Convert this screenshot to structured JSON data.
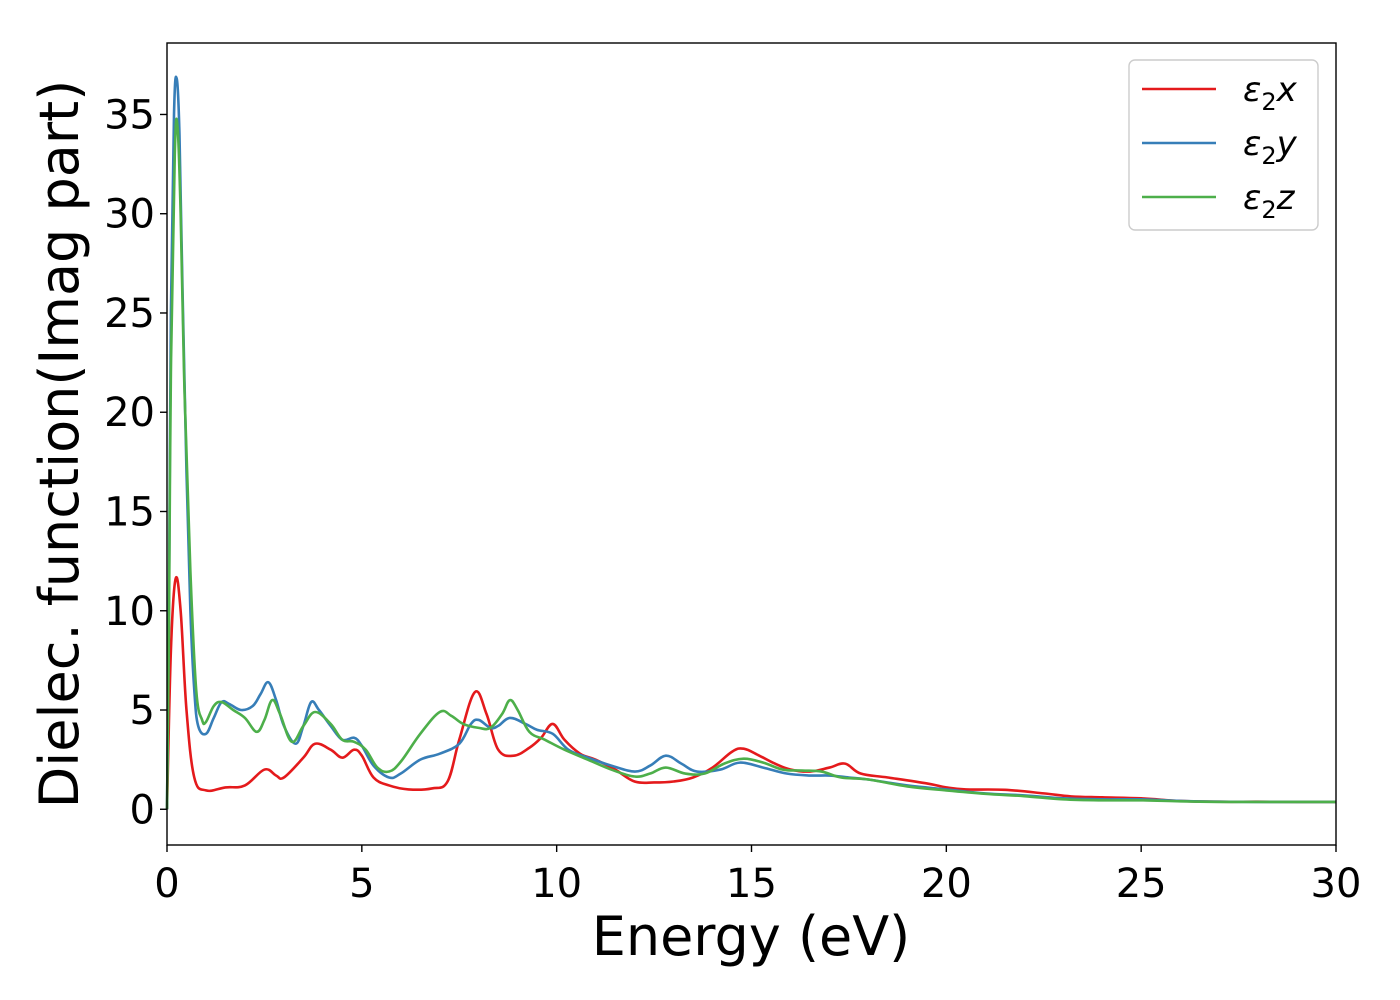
{
  "chart_data": {
    "type": "line",
    "xlabel": "Energy (eV)",
    "ylabel": "Dielec. function(Imag part)",
    "xlim": [
      0,
      30
    ],
    "ylim": [
      -1.8,
      38.6
    ],
    "xticks": [
      0,
      5,
      10,
      15,
      20,
      25,
      30
    ],
    "yticks": [
      0,
      5,
      10,
      15,
      20,
      25,
      30,
      35
    ],
    "grid": false,
    "legend_position": "top-right",
    "series": [
      {
        "name": "ε₂x",
        "legend_main": "ε",
        "legend_sub": "2",
        "legend_tail": "x",
        "color": "#e41a1c",
        "points": [
          [
            0,
            0
          ],
          [
            0.1,
            8
          ],
          [
            0.22,
            11.6
          ],
          [
            0.35,
            10
          ],
          [
            0.5,
            5
          ],
          [
            0.7,
            1.6
          ],
          [
            1,
            0.95
          ],
          [
            1.5,
            1.1
          ],
          [
            2,
            1.2
          ],
          [
            2.5,
            2.0
          ],
          [
            2.8,
            1.7
          ],
          [
            3.0,
            1.6
          ],
          [
            3.5,
            2.6
          ],
          [
            3.8,
            3.3
          ],
          [
            4.2,
            3.0
          ],
          [
            4.5,
            2.6
          ],
          [
            4.8,
            3.0
          ],
          [
            5.0,
            2.7
          ],
          [
            5.3,
            1.6
          ],
          [
            5.7,
            1.2
          ],
          [
            6.2,
            1.0
          ],
          [
            6.8,
            1.05
          ],
          [
            7.2,
            1.4
          ],
          [
            7.5,
            3.5
          ],
          [
            7.9,
            5.9
          ],
          [
            8.2,
            4.8
          ],
          [
            8.5,
            3.0
          ],
          [
            8.9,
            2.7
          ],
          [
            9.3,
            3.1
          ],
          [
            9.6,
            3.6
          ],
          [
            9.9,
            4.3
          ],
          [
            10.2,
            3.5
          ],
          [
            10.6,
            2.8
          ],
          [
            11.0,
            2.5
          ],
          [
            11.5,
            2.0
          ],
          [
            12.0,
            1.4
          ],
          [
            12.5,
            1.35
          ],
          [
            13.0,
            1.4
          ],
          [
            13.5,
            1.6
          ],
          [
            14.0,
            2.1
          ],
          [
            14.5,
            2.9
          ],
          [
            14.8,
            3.05
          ],
          [
            15.2,
            2.7
          ],
          [
            15.6,
            2.3
          ],
          [
            16.0,
            2.0
          ],
          [
            16.5,
            1.9
          ],
          [
            17.0,
            2.1
          ],
          [
            17.4,
            2.3
          ],
          [
            17.8,
            1.8
          ],
          [
            18.5,
            1.6
          ],
          [
            19.5,
            1.3
          ],
          [
            20,
            1.1
          ],
          [
            20.5,
            1.0
          ],
          [
            21.5,
            0.98
          ],
          [
            22.5,
            0.8
          ],
          [
            23.2,
            0.65
          ],
          [
            24,
            0.6
          ],
          [
            25,
            0.55
          ],
          [
            26,
            0.42
          ],
          [
            27,
            0.38
          ],
          [
            28,
            0.38
          ],
          [
            29,
            0.37
          ],
          [
            30,
            0.37
          ]
        ]
      },
      {
        "name": "ε₂y",
        "legend_main": "ε",
        "legend_sub": "2",
        "legend_tail": "y",
        "color": "#377eb8",
        "points": [
          [
            0,
            0
          ],
          [
            0.05,
            10
          ],
          [
            0.1,
            25
          ],
          [
            0.18,
            35
          ],
          [
            0.25,
            36.8
          ],
          [
            0.32,
            34
          ],
          [
            0.4,
            26
          ],
          [
            0.5,
            17
          ],
          [
            0.6,
            10
          ],
          [
            0.7,
            6
          ],
          [
            0.8,
            4.2
          ],
          [
            1.0,
            3.8
          ],
          [
            1.2,
            4.6
          ],
          [
            1.4,
            5.4
          ],
          [
            1.6,
            5.3
          ],
          [
            1.9,
            5.0
          ],
          [
            2.2,
            5.2
          ],
          [
            2.4,
            5.8
          ],
          [
            2.6,
            6.4
          ],
          [
            2.8,
            5.5
          ],
          [
            3.0,
            4.2
          ],
          [
            3.3,
            3.3
          ],
          [
            3.5,
            4.2
          ],
          [
            3.7,
            5.4
          ],
          [
            3.9,
            5.0
          ],
          [
            4.2,
            4.2
          ],
          [
            4.5,
            3.5
          ],
          [
            4.8,
            3.6
          ],
          [
            5.0,
            3.2
          ],
          [
            5.3,
            2.2
          ],
          [
            5.7,
            1.6
          ],
          [
            6.0,
            1.8
          ],
          [
            6.5,
            2.5
          ],
          [
            7.0,
            2.8
          ],
          [
            7.5,
            3.3
          ],
          [
            7.8,
            4.3
          ],
          [
            8.0,
            4.5
          ],
          [
            8.3,
            4.1
          ],
          [
            8.5,
            4.2
          ],
          [
            8.8,
            4.6
          ],
          [
            9.2,
            4.3
          ],
          [
            9.5,
            4.0
          ],
          [
            9.9,
            3.8
          ],
          [
            10.3,
            3.0
          ],
          [
            10.8,
            2.6
          ],
          [
            11.4,
            2.2
          ],
          [
            12.0,
            1.9
          ],
          [
            12.4,
            2.2
          ],
          [
            12.8,
            2.7
          ],
          [
            13.2,
            2.3
          ],
          [
            13.6,
            1.9
          ],
          [
            14.2,
            2.0
          ],
          [
            14.7,
            2.35
          ],
          [
            15.3,
            2.1
          ],
          [
            15.9,
            1.8
          ],
          [
            16.5,
            1.7
          ],
          [
            17.0,
            1.7
          ],
          [
            17.5,
            1.6
          ],
          [
            18,
            1.5
          ],
          [
            19,
            1.2
          ],
          [
            20,
            1.0
          ],
          [
            21,
            0.8
          ],
          [
            22,
            0.7
          ],
          [
            23,
            0.55
          ],
          [
            24,
            0.5
          ],
          [
            25,
            0.5
          ],
          [
            26,
            0.42
          ],
          [
            27,
            0.38
          ],
          [
            28,
            0.37
          ],
          [
            29,
            0.37
          ],
          [
            30,
            0.37
          ]
        ]
      },
      {
        "name": "ε₂z",
        "legend_main": "ε",
        "legend_sub": "2",
        "legend_tail": "z",
        "color": "#4daf4a",
        "points": [
          [
            0,
            0
          ],
          [
            0.05,
            9
          ],
          [
            0.1,
            22
          ],
          [
            0.2,
            33
          ],
          [
            0.27,
            34.4
          ],
          [
            0.35,
            30
          ],
          [
            0.45,
            21
          ],
          [
            0.6,
            12
          ],
          [
            0.75,
            6
          ],
          [
            0.9,
            4.5
          ],
          [
            1.0,
            4.4
          ],
          [
            1.2,
            5.2
          ],
          [
            1.4,
            5.4
          ],
          [
            1.7,
            5.0
          ],
          [
            2.0,
            4.6
          ],
          [
            2.3,
            3.9
          ],
          [
            2.5,
            4.5
          ],
          [
            2.7,
            5.5
          ],
          [
            2.9,
            4.8
          ],
          [
            3.2,
            3.4
          ],
          [
            3.5,
            4.2
          ],
          [
            3.8,
            4.9
          ],
          [
            4.2,
            4.3
          ],
          [
            4.5,
            3.5
          ],
          [
            4.8,
            3.4
          ],
          [
            5.1,
            3.0
          ],
          [
            5.4,
            2.1
          ],
          [
            5.7,
            1.9
          ],
          [
            6.0,
            2.4
          ],
          [
            6.5,
            3.8
          ],
          [
            7.0,
            4.9
          ],
          [
            7.3,
            4.7
          ],
          [
            7.6,
            4.3
          ],
          [
            8.0,
            4.1
          ],
          [
            8.3,
            4.1
          ],
          [
            8.6,
            4.8
          ],
          [
            8.8,
            5.5
          ],
          [
            9.0,
            5.0
          ],
          [
            9.3,
            3.9
          ],
          [
            9.7,
            3.5
          ],
          [
            10.2,
            3.0
          ],
          [
            10.8,
            2.5
          ],
          [
            11.4,
            2.0
          ],
          [
            12.0,
            1.65
          ],
          [
            12.4,
            1.8
          ],
          [
            12.8,
            2.1
          ],
          [
            13.3,
            1.8
          ],
          [
            13.8,
            1.8
          ],
          [
            14.3,
            2.3
          ],
          [
            14.8,
            2.55
          ],
          [
            15.3,
            2.35
          ],
          [
            15.8,
            2.0
          ],
          [
            16.3,
            1.95
          ],
          [
            16.8,
            1.9
          ],
          [
            17.3,
            1.6
          ],
          [
            18,
            1.5
          ],
          [
            19,
            1.15
          ],
          [
            20,
            0.95
          ],
          [
            21,
            0.78
          ],
          [
            22,
            0.66
          ],
          [
            23,
            0.5
          ],
          [
            24,
            0.45
          ],
          [
            25,
            0.45
          ],
          [
            26,
            0.4
          ],
          [
            27,
            0.37
          ],
          [
            28,
            0.37
          ],
          [
            29,
            0.37
          ],
          [
            30,
            0.37
          ]
        ]
      }
    ]
  }
}
